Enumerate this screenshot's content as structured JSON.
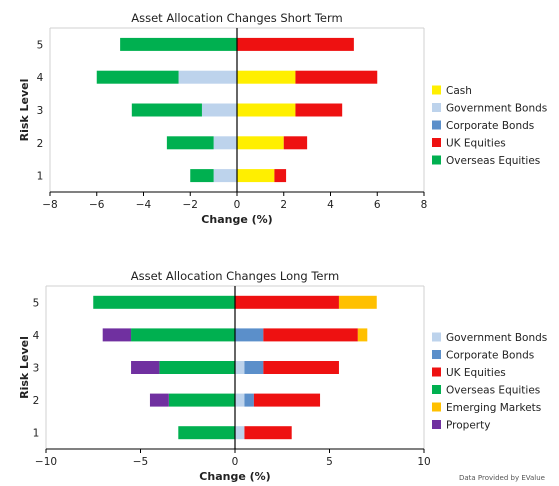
{
  "footer": "Data Provided by EValue",
  "colors": {
    "Cash": "#ffef00",
    "Government Bonds": "#bdd3ec",
    "Corporate Bonds": "#5b8fca",
    "UK Equities": "#ee1111",
    "Overseas Equities": "#00b050",
    "Emerging Markets": "#ffc000",
    "Property": "#7030a0"
  },
  "chart_data": [
    {
      "type": "bar",
      "orientation": "horizontal",
      "stacked": true,
      "title": "Asset Allocation Changes Short Term",
      "xlabel": "Change (%)",
      "ylabel": "Risk Level",
      "categories": [
        "1",
        "2",
        "3",
        "4",
        "5"
      ],
      "xlim": [
        -8,
        8
      ],
      "xticks": [
        -8,
        -6,
        -4,
        -2,
        0,
        2,
        4,
        6,
        8
      ],
      "grid": false,
      "legend_position": "right",
      "legend": [
        "Cash",
        "Government Bonds",
        "Corporate Bonds",
        "UK Equities",
        "Overseas Equities"
      ],
      "series": [
        {
          "name": "Cash",
          "values": [
            1.6,
            2.0,
            2.5,
            2.5,
            0
          ]
        },
        {
          "name": "Government Bonds",
          "values": [
            -1.0,
            -1.0,
            -1.5,
            -2.5,
            0
          ]
        },
        {
          "name": "Corporate Bonds",
          "values": [
            0,
            0,
            0,
            0,
            0
          ]
        },
        {
          "name": "UK Equities",
          "values": [
            0.5,
            1.0,
            2.0,
            3.5,
            5.0
          ]
        },
        {
          "name": "Overseas Equities",
          "values": [
            -1.0,
            -2.0,
            -3.0,
            -3.5,
            -5.0
          ]
        }
      ]
    },
    {
      "type": "bar",
      "orientation": "horizontal",
      "stacked": true,
      "title": "Asset Allocation Changes Long Term",
      "xlabel": "Change (%)",
      "ylabel": "Risk Level",
      "categories": [
        "1",
        "2",
        "3",
        "4",
        "5"
      ],
      "xlim": [
        -10,
        10
      ],
      "xticks": [
        -10,
        -5,
        0,
        5,
        10
      ],
      "grid": false,
      "legend_position": "right",
      "legend": [
        "Government Bonds",
        "Corporate Bonds",
        "UK Equities",
        "Overseas Equities",
        "Emerging Markets",
        "Property"
      ],
      "series": [
        {
          "name": "Government Bonds",
          "values": [
            0.5,
            0.5,
            0.5,
            0,
            0
          ]
        },
        {
          "name": "Corporate Bonds",
          "values": [
            0,
            0.5,
            1.0,
            1.5,
            0
          ]
        },
        {
          "name": "UK Equities",
          "values": [
            2.5,
            3.5,
            4.0,
            5.0,
            5.5
          ]
        },
        {
          "name": "Overseas Equities",
          "values": [
            -3.0,
            -3.5,
            -4.0,
            -5.5,
            -7.5
          ]
        },
        {
          "name": "Emerging Markets",
          "values": [
            0,
            0,
            0,
            0.5,
            2.0
          ]
        },
        {
          "name": "Property",
          "values": [
            0,
            -1.0,
            -1.5,
            -1.5,
            0
          ]
        }
      ]
    }
  ]
}
